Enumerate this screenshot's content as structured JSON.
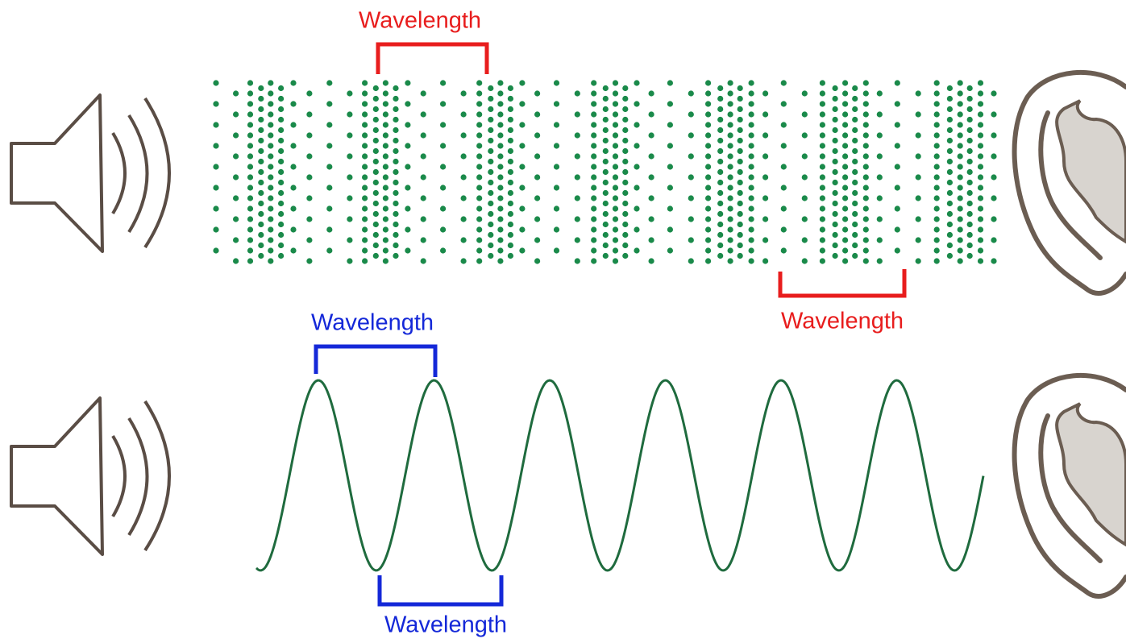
{
  "compression_wave": {
    "top_label": "Wavelength",
    "bottom_label": "Wavelength"
  },
  "transverse_wave": {
    "top_label": "Wavelength",
    "bottom_label": "Wavelength"
  }
}
